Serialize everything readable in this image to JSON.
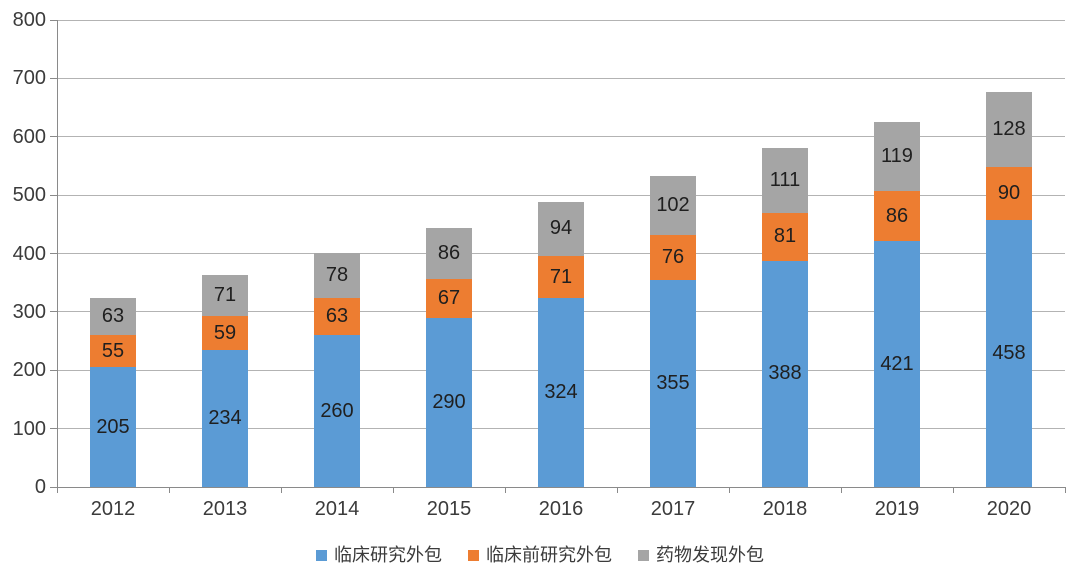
{
  "chart_data": {
    "type": "bar",
    "stacked": true,
    "categories": [
      "2012",
      "2013",
      "2014",
      "2015",
      "2016",
      "2017",
      "2018",
      "2019",
      "2020"
    ],
    "series": [
      {
        "name": "临床研究外包",
        "color": "#5B9BD5",
        "values": [
          205,
          234,
          260,
          290,
          324,
          355,
          388,
          421,
          458
        ]
      },
      {
        "name": "临床前研究外包",
        "color": "#ED7D31",
        "values": [
          55,
          59,
          63,
          67,
          71,
          76,
          81,
          86,
          90
        ]
      },
      {
        "name": "药物发现外包",
        "color": "#A5A5A5",
        "values": [
          63,
          71,
          78,
          86,
          94,
          102,
          111,
          119,
          128
        ]
      }
    ],
    "title": "",
    "xlabel": "",
    "ylabel": "",
    "ylim": [
      0,
      800
    ],
    "yticks": [
      0,
      100,
      200,
      300,
      400,
      500,
      600,
      700,
      800
    ],
    "grid": true,
    "data_labels": true,
    "legend_position": "bottom"
  },
  "colors": {
    "background": "#FFFFFF",
    "grid": "#B3B3B3",
    "axis": "#8A8A8A",
    "tick_label_text": "#3B3B3B",
    "bar_label_text": "#1F1F1F"
  }
}
